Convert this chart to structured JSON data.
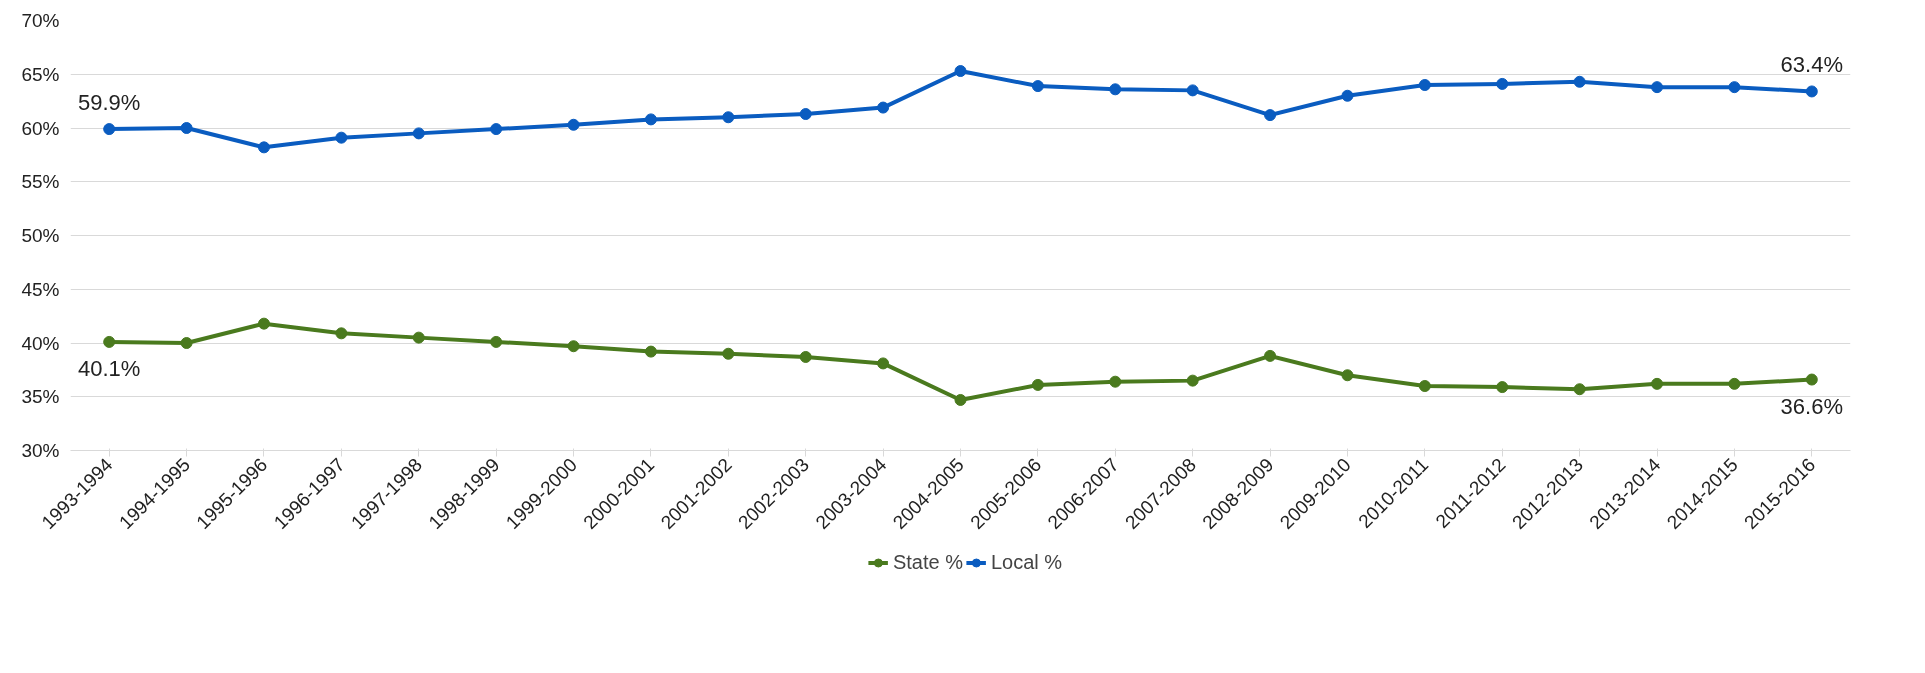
{
  "chart_data": {
    "type": "line",
    "categories": [
      "1993-1994",
      "1994-1995",
      "1995-1996",
      "1996-1997",
      "1997-1998",
      "1998-1999",
      "1999-2000",
      "2000-2001",
      "2001-2002",
      "2002-2003",
      "2003-2004",
      "2004-2005",
      "2005-2006",
      "2006-2007",
      "2007-2008",
      "2008-2009",
      "2009-2010",
      "2010-2011",
      "2011-2012",
      "2012-2013",
      "2013-2014",
      "2014-2015",
      "2015-2016"
    ],
    "series": [
      {
        "name": "State %",
        "color": "#4a7a1e",
        "values": [
          40.1,
          40.0,
          41.8,
          40.9,
          40.5,
          40.1,
          39.7,
          39.2,
          39.0,
          38.7,
          38.1,
          34.7,
          36.1,
          36.4,
          36.5,
          38.8,
          37.0,
          36.0,
          35.9,
          35.7,
          36.2,
          36.2,
          36.6
        ]
      },
      {
        "name": "Local %",
        "color": "#0a5cc0",
        "values": [
          59.9,
          60.0,
          58.2,
          59.1,
          59.5,
          59.9,
          60.3,
          60.8,
          61.0,
          61.3,
          61.9,
          65.3,
          63.9,
          63.6,
          63.5,
          61.2,
          63.0,
          64.0,
          64.1,
          64.3,
          63.8,
          63.8,
          63.4
        ]
      }
    ],
    "ylim": [
      30,
      70
    ],
    "yticks": [
      {
        "value": 30,
        "label": "30%"
      },
      {
        "value": 35,
        "label": "35%"
      },
      {
        "value": 40,
        "label": "40%"
      },
      {
        "value": 45,
        "label": "45%"
      },
      {
        "value": 50,
        "label": "50%"
      },
      {
        "value": 55,
        "label": "55%"
      },
      {
        "value": 60,
        "label": "60%"
      },
      {
        "value": 65,
        "label": "65%"
      },
      {
        "value": 70,
        "label": "70%"
      }
    ],
    "grid": "y",
    "legend": "bottom",
    "marker": "circle",
    "line_style": "solid",
    "annotations": [
      {
        "text": "59.9%",
        "x": "1993-1994",
        "y": 59.9
      },
      {
        "text": "40.1%",
        "x": "1993-1994",
        "y": 40.1
      },
      {
        "text": "63.4%",
        "x": "2015-2016",
        "y": 63.4
      },
      {
        "text": "36.6%",
        "x": "2015-2016",
        "y": 36.6
      }
    ]
  }
}
